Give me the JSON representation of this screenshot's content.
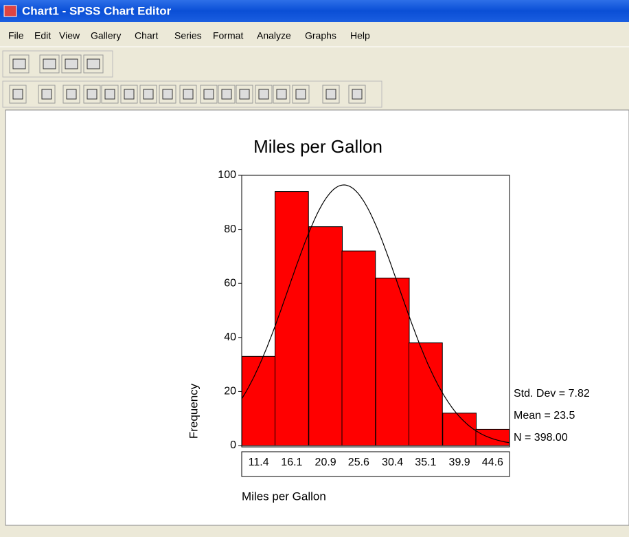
{
  "window": {
    "title": "Chart1 - SPSS Chart Editor"
  },
  "menu": [
    "File",
    "Edit",
    "View",
    "Gallery",
    "Chart",
    "Series",
    "Format",
    "Analyze",
    "Graphs",
    "Help"
  ],
  "chart_data": {
    "type": "histogram",
    "title": "Miles per Gallon",
    "x": [
      11.4,
      16.1,
      20.9,
      25.6,
      30.4,
      35.1,
      39.9,
      44.6
    ],
    "values": [
      33,
      94,
      81,
      72,
      62,
      38,
      12,
      6
    ],
    "color": "#ff0000",
    "xlim": [
      9.0,
      47.0
    ],
    "ylim": [
      0,
      100
    ],
    "yticks": [
      0,
      20,
      40,
      60,
      80,
      100
    ],
    "x_label": "Miles per Gallon",
    "y_label": "Frequency",
    "normal_curve": {
      "std": 7.82,
      "mean": 23.5,
      "n": 398,
      "value_labels": {
        "std": "Std. Dev = 7.82",
        "mean": "Mean = 23.5",
        "n": "N = 398.00"
      }
    }
  }
}
